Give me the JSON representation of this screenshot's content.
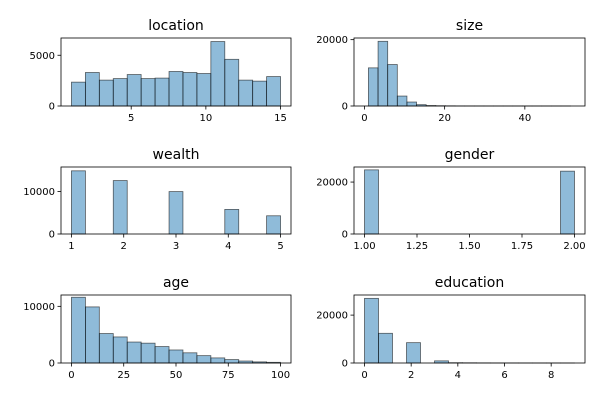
{
  "chart_data": [
    {
      "type": "bar",
      "title": "location",
      "xlim": [
        0.3,
        15.7
      ],
      "ylim": [
        0,
        6700
      ],
      "xticks": [
        5,
        10,
        15
      ],
      "yticks": [
        0,
        5000
      ],
      "bin_edges": [
        1,
        1.933,
        2.867,
        3.8,
        4.733,
        5.667,
        6.6,
        7.533,
        8.467,
        9.4,
        10.333,
        11.267,
        12.2,
        13.133,
        14.067,
        15
      ],
      "values": [
        2350,
        3300,
        2550,
        2700,
        3100,
        2700,
        2750,
        3400,
        3300,
        3200,
        6350,
        4600,
        2550,
        2450,
        2900
      ]
    },
    {
      "type": "bar",
      "title": "size",
      "xlim": [
        -2.6,
        55
      ],
      "ylim": [
        0,
        20500
      ],
      "xticks": [
        0,
        20,
        40
      ],
      "yticks": [
        0,
        20000
      ],
      "bin_edges": [
        1,
        3.4,
        5.8,
        8.2,
        10.6,
        13,
        15.4,
        17.8,
        20.2,
        22.6,
        25,
        27.4,
        29.8,
        32.2,
        34.6,
        37,
        39.4,
        41.8,
        44.2,
        46.6,
        49,
        51.4
      ],
      "values": [
        11500,
        19500,
        12500,
        3000,
        1200,
        400,
        150,
        80,
        50,
        30,
        20,
        15,
        10,
        8,
        6,
        5,
        4,
        3,
        2,
        2,
        1
      ]
    },
    {
      "type": "bar",
      "title": "wealth",
      "xlim": [
        0.8,
        5.2
      ],
      "ylim": [
        0,
        15800
      ],
      "xticks": [
        1,
        2,
        3,
        4,
        5
      ],
      "yticks": [
        0,
        10000
      ],
      "bin_edges": [
        1,
        1.267,
        1.533,
        1.8,
        2.067,
        2.333,
        2.6,
        2.867,
        3.133,
        3.4,
        3.667,
        3.933,
        4.2,
        4.467,
        4.733,
        5
      ],
      "values": [
        14900,
        0,
        0,
        12600,
        0,
        0,
        0,
        10000,
        0,
        0,
        0,
        5800,
        0,
        0,
        4300
      ]
    },
    {
      "type": "bar",
      "title": "gender",
      "xlim": [
        0.95,
        2.05
      ],
      "ylim": [
        0,
        25800
      ],
      "xticks": [
        "1.00",
        "1.25",
        "1.50",
        "1.75",
        "2.00"
      ],
      "yticks": [
        0,
        20000
      ],
      "bin_edges": [
        1,
        1.0667,
        1.1333,
        1.2,
        1.2667,
        1.3333,
        1.4,
        1.4667,
        1.5333,
        1.6,
        1.6667,
        1.7333,
        1.8,
        1.8667,
        1.9333,
        2
      ],
      "values": [
        24700,
        0,
        0,
        0,
        0,
        0,
        0,
        0,
        0,
        0,
        0,
        0,
        0,
        0,
        24200
      ]
    },
    {
      "type": "bar",
      "title": "age",
      "xlim": [
        -5,
        105
      ],
      "ylim": [
        0,
        12000
      ],
      "xticks": [
        0,
        25,
        50,
        75,
        100
      ],
      "yticks": [
        0,
        10000
      ],
      "bin_edges": [
        0,
        6.67,
        13.33,
        20,
        26.67,
        33.33,
        40,
        46.67,
        53.33,
        60,
        66.67,
        73.33,
        80,
        86.67,
        93.33,
        100
      ],
      "values": [
        11600,
        9900,
        5200,
        4600,
        3700,
        3500,
        2900,
        2300,
        1800,
        1300,
        900,
        600,
        350,
        200,
        120
      ]
    },
    {
      "type": "bar",
      "title": "education",
      "xlim": [
        -0.45,
        9.45
      ],
      "ylim": [
        0,
        28400
      ],
      "xticks": [
        0,
        2,
        4,
        6,
        8
      ],
      "yticks": [
        0,
        20000
      ],
      "bin_edges": [
        0,
        0.6,
        1.2,
        1.8,
        2.4,
        3,
        3.6,
        4.2,
        4.8,
        5.4,
        6,
        6.6,
        7.2,
        7.8,
        8.4,
        9
      ],
      "values": [
        27000,
        12400,
        0,
        8500,
        0,
        900,
        120,
        80,
        50,
        30,
        20,
        15,
        10,
        5,
        5
      ]
    }
  ]
}
